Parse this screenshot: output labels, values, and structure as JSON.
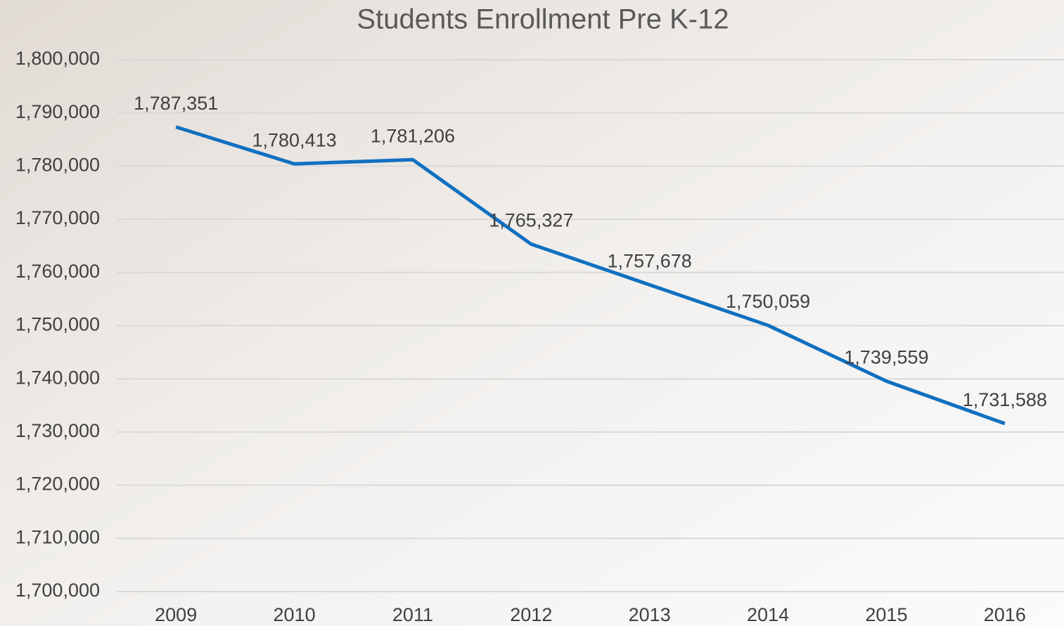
{
  "chart_data": {
    "type": "line",
    "title": "Students Enrollment Pre K-12",
    "categories": [
      "2009",
      "2010",
      "2011",
      "2012",
      "2013",
      "2014",
      "2015",
      "2016"
    ],
    "series": [
      {
        "name": "Students Enrollment",
        "color": "#0f70c0",
        "values": [
          1787351,
          1780413,
          1781206,
          1765327,
          1757678,
          1750059,
          1739559,
          1731588
        ],
        "value_labels": [
          "1,787,351",
          "1,780,413",
          "1,781,206",
          "1,765,327",
          "1,757,678",
          "1,750,059",
          "1,739,559",
          "1,731,588"
        ]
      }
    ],
    "ylim": [
      1700000,
      1800000
    ],
    "yticks": [
      {
        "value": 1700000,
        "label": "1,700,000"
      },
      {
        "value": 1710000,
        "label": "1,710,000"
      },
      {
        "value": 1720000,
        "label": "1,720,000"
      },
      {
        "value": 1730000,
        "label": "1,730,000"
      },
      {
        "value": 1740000,
        "label": "1,740,000"
      },
      {
        "value": 1750000,
        "label": "1,750,000"
      },
      {
        "value": 1760000,
        "label": "1,760,000"
      },
      {
        "value": 1770000,
        "label": "1,770,000"
      },
      {
        "value": 1780000,
        "label": "1,780,000"
      },
      {
        "value": 1790000,
        "label": "1,790,000"
      },
      {
        "value": 1800000,
        "label": "1,800,000"
      }
    ],
    "grid": true
  }
}
